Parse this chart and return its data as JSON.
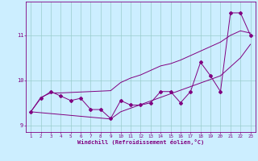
{
  "xlabel": "Windchill (Refroidissement éolien,°C)",
  "x": [
    1,
    2,
    3,
    4,
    5,
    6,
    7,
    8,
    9,
    10,
    11,
    12,
    13,
    14,
    15,
    16,
    17,
    18,
    19,
    20,
    21,
    22,
    23
  ],
  "y_data": [
    9.3,
    9.6,
    9.75,
    9.65,
    9.55,
    9.6,
    9.35,
    9.35,
    9.15,
    9.55,
    9.45,
    9.45,
    9.5,
    9.75,
    9.75,
    9.5,
    9.75,
    10.4,
    10.1,
    9.75,
    11.5,
    11.5,
    11.0
  ],
  "y_upper": [
    9.3,
    9.62,
    9.72,
    9.72,
    9.73,
    9.74,
    9.75,
    9.76,
    9.77,
    9.95,
    10.05,
    10.12,
    10.22,
    10.32,
    10.37,
    10.45,
    10.55,
    10.65,
    10.75,
    10.85,
    11.0,
    11.1,
    11.05
  ],
  "y_lower": [
    9.3,
    9.28,
    9.26,
    9.24,
    9.22,
    9.2,
    9.18,
    9.16,
    9.14,
    9.3,
    9.38,
    9.46,
    9.54,
    9.62,
    9.7,
    9.78,
    9.86,
    9.94,
    10.02,
    10.1,
    10.3,
    10.5,
    10.8
  ],
  "line_color": "#800080",
  "bg_color": "#cceeff",
  "grid_color": "#99cccc",
  "ylim": [
    8.85,
    11.75
  ],
  "xlim": [
    0.5,
    23.5
  ],
  "yticks": [
    9,
    10,
    11
  ],
  "xticks": [
    1,
    2,
    3,
    4,
    5,
    6,
    7,
    8,
    9,
    10,
    11,
    12,
    13,
    14,
    15,
    16,
    17,
    18,
    19,
    20,
    21,
    22,
    23
  ]
}
